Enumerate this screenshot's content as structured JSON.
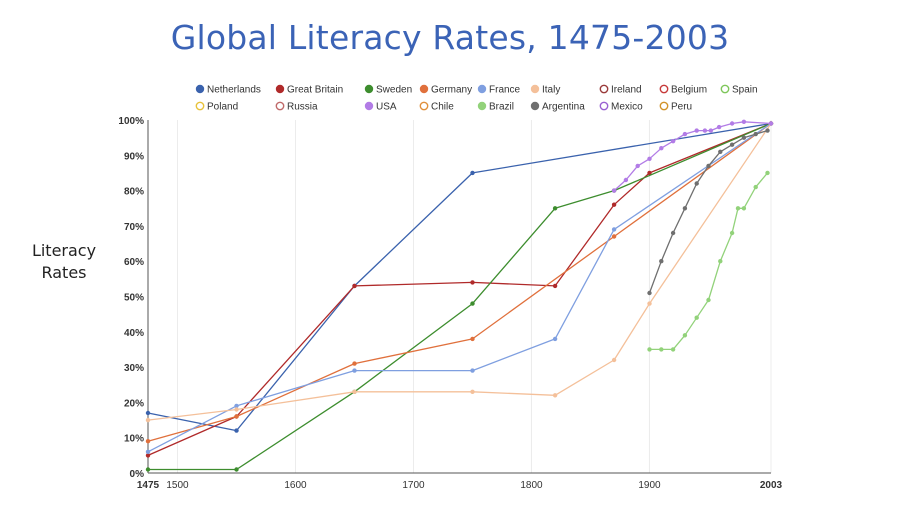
{
  "chart_data": {
    "type": "line",
    "title": "Global Literacy Rates, 1475-2003",
    "ylabel": "Literacy Rates",
    "xlabel": "",
    "xlim": [
      1475,
      2003
    ],
    "ylim": [
      0,
      100
    ],
    "xticks": [
      {
        "value": 1475,
        "label": "1475",
        "bold": true
      },
      {
        "value": 1500,
        "label": "1500"
      },
      {
        "value": 1600,
        "label": "1600"
      },
      {
        "value": 1700,
        "label": "1700"
      },
      {
        "value": 1800,
        "label": "1800"
      },
      {
        "value": 1900,
        "label": "1900"
      },
      {
        "value": 2003,
        "label": "2003",
        "bold": true
      }
    ],
    "yticks": [
      "0%",
      "10%",
      "20%",
      "30%",
      "40%",
      "50%",
      "60%",
      "70%",
      "80%",
      "90%",
      "100%"
    ],
    "grid": {
      "vertical": true,
      "horizontal": false
    },
    "legend_position": "top",
    "series": [
      {
        "name": "Netherlands",
        "color": "#3a62ad",
        "filled": true,
        "points": [
          [
            1475,
            17
          ],
          [
            1550,
            12
          ],
          [
            1650,
            53
          ],
          [
            1750,
            85
          ],
          [
            2003,
            99
          ]
        ]
      },
      {
        "name": "Great Britain",
        "color": "#b02a2a",
        "filled": true,
        "points": [
          [
            1475,
            5
          ],
          [
            1550,
            16
          ],
          [
            1650,
            53
          ],
          [
            1750,
            54
          ],
          [
            1820,
            53
          ],
          [
            1870,
            76
          ],
          [
            1900,
            85
          ],
          [
            2003,
            99
          ]
        ]
      },
      {
        "name": "Sweden",
        "color": "#3d8d2e",
        "filled": true,
        "points": [
          [
            1475,
            1
          ],
          [
            1550,
            1
          ],
          [
            1650,
            23
          ],
          [
            1750,
            48
          ],
          [
            1820,
            75
          ],
          [
            1870,
            80
          ],
          [
            2003,
            99
          ]
        ]
      },
      {
        "name": "Germany",
        "color": "#e0703c",
        "filled": true,
        "points": [
          [
            1475,
            9
          ],
          [
            1550,
            16
          ],
          [
            1650,
            31
          ],
          [
            1750,
            38
          ],
          [
            1870,
            67
          ],
          [
            2003,
            99
          ]
        ]
      },
      {
        "name": "France",
        "color": "#7f9fe0",
        "filled": true,
        "points": [
          [
            1475,
            6
          ],
          [
            1550,
            19
          ],
          [
            1650,
            29
          ],
          [
            1750,
            29
          ],
          [
            1820,
            38
          ],
          [
            1870,
            69
          ],
          [
            2003,
            99
          ]
        ]
      },
      {
        "name": "Italy",
        "color": "#f4c09a",
        "filled": true,
        "points": [
          [
            1475,
            15
          ],
          [
            1550,
            18
          ],
          [
            1650,
            23
          ],
          [
            1750,
            23
          ],
          [
            1820,
            22
          ],
          [
            1870,
            32
          ],
          [
            1900,
            48
          ],
          [
            2003,
            99
          ]
        ]
      },
      {
        "name": "Ireland",
        "color": "#9a3b3b",
        "filled": false,
        "points": []
      },
      {
        "name": "Belgium",
        "color": "#c73a3a",
        "filled": false,
        "points": []
      },
      {
        "name": "Spain",
        "color": "#7ec65a",
        "filled": false,
        "points": []
      },
      {
        "name": "Poland",
        "color": "#e8c23a",
        "filled": false,
        "points": []
      },
      {
        "name": "Russia",
        "color": "#c06a6a",
        "filled": false,
        "points": []
      },
      {
        "name": "USA",
        "color": "#b27ce6",
        "filled": true,
        "points": [
          [
            1870,
            80
          ],
          [
            1880,
            83
          ],
          [
            1890,
            87
          ],
          [
            1900,
            89
          ],
          [
            1910,
            92
          ],
          [
            1920,
            94
          ],
          [
            1930,
            96
          ],
          [
            1940,
            97
          ],
          [
            1947,
            97
          ],
          [
            1952,
            97
          ],
          [
            1959,
            98
          ],
          [
            1970,
            99
          ],
          [
            1980,
            99.5
          ],
          [
            2003,
            99
          ]
        ]
      },
      {
        "name": "Chile",
        "color": "#e0903c",
        "filled": false,
        "points": []
      },
      {
        "name": "Brazil",
        "color": "#92d27a",
        "filled": true,
        "points": [
          [
            1900,
            35
          ],
          [
            1910,
            35
          ],
          [
            1920,
            35
          ],
          [
            1930,
            39
          ],
          [
            1940,
            44
          ],
          [
            1950,
            49
          ],
          [
            1960,
            60
          ],
          [
            1970,
            68
          ],
          [
            1975,
            75
          ],
          [
            1980,
            75
          ],
          [
            1990,
            81
          ],
          [
            2000,
            85
          ]
        ]
      },
      {
        "name": "Argentina",
        "color": "#6f6f6f",
        "filled": true,
        "points": [
          [
            1900,
            51
          ],
          [
            1910,
            60
          ],
          [
            1920,
            68
          ],
          [
            1930,
            75
          ],
          [
            1940,
            82
          ],
          [
            1950,
            87
          ],
          [
            1960,
            91
          ],
          [
            1970,
            93
          ],
          [
            1980,
            95
          ],
          [
            1990,
            96
          ],
          [
            2000,
            97
          ]
        ]
      },
      {
        "name": "Mexico",
        "color": "#9a62d2",
        "filled": false,
        "points": []
      },
      {
        "name": "Peru",
        "color": "#d2932a",
        "filled": false,
        "points": []
      }
    ]
  }
}
